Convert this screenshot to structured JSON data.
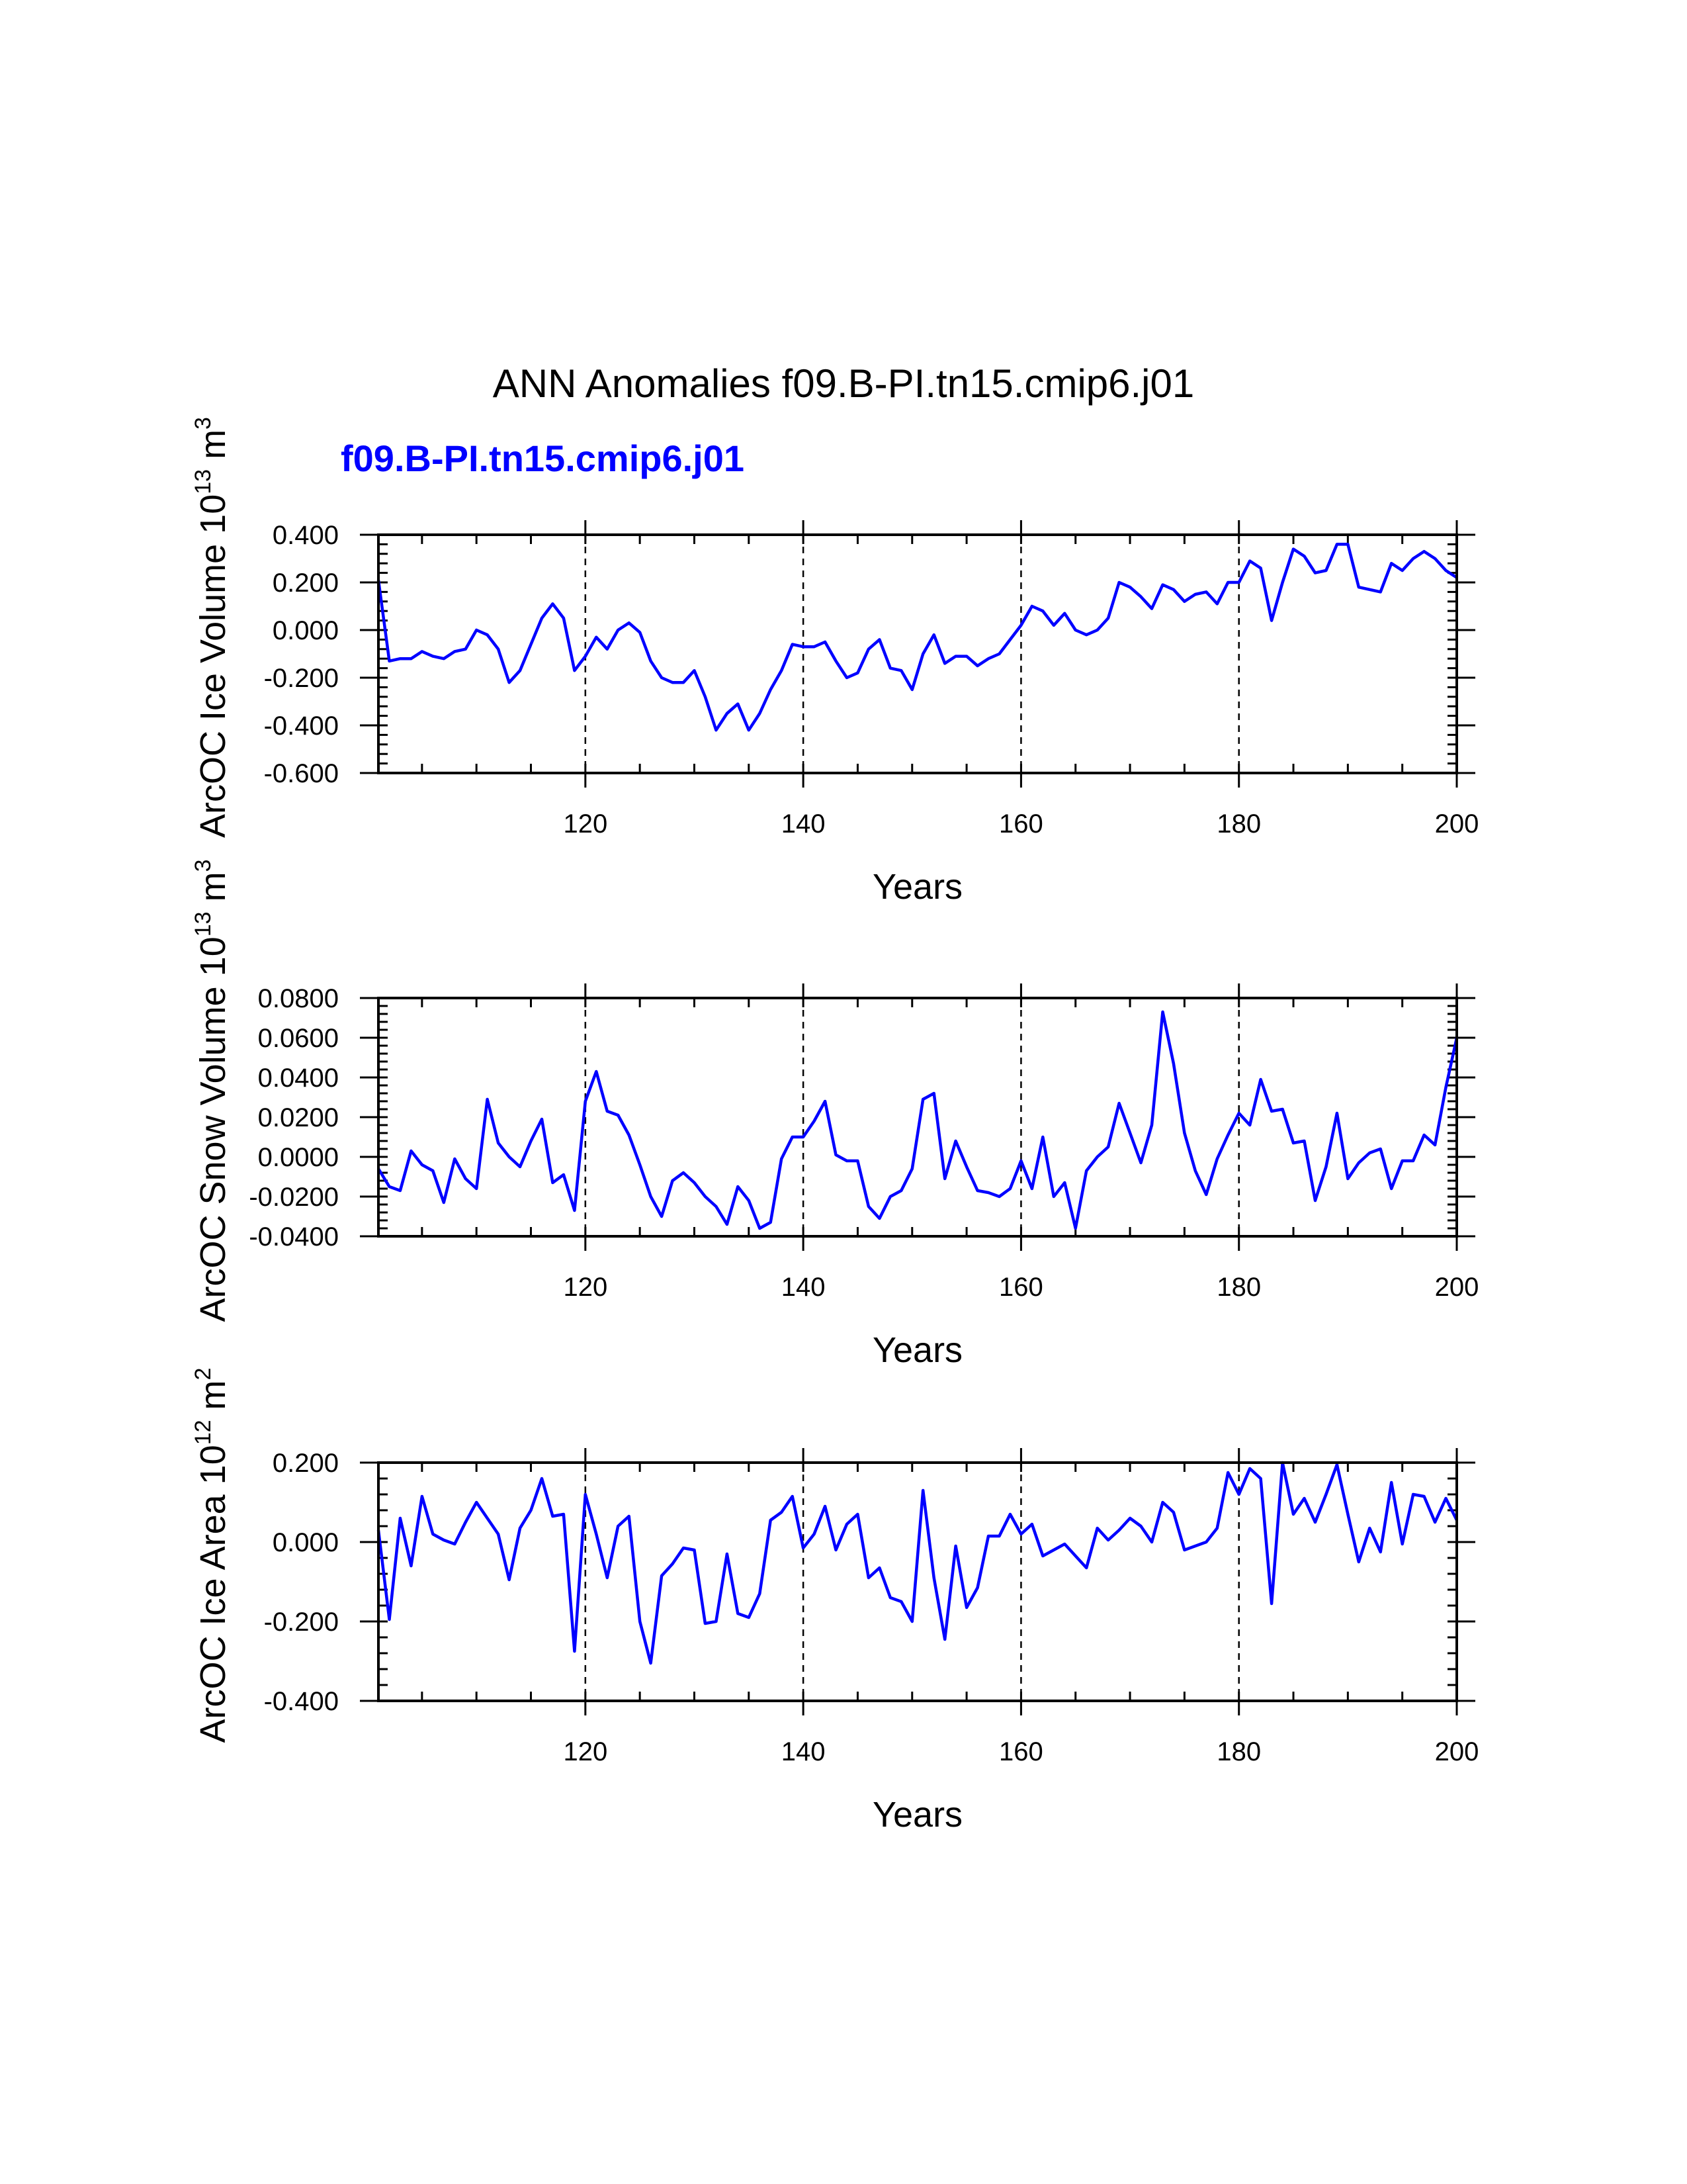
{
  "title": "ANN Anomalies f09.B-PI.tn15.cmip6.j01",
  "series_label": "f09.B-PI.tn15.cmip6.j01",
  "colors": {
    "line": "#0000ff",
    "axis": "#000000",
    "label": "#0000ff"
  },
  "chart_data": [
    {
      "type": "line",
      "title": "ArcOC Ice Volume",
      "ylabel": "ArcOC Ice Volume",
      "ylabel_unit_base": "10",
      "ylabel_unit_exp": "13",
      "ylabel_unit_m": "m",
      "ylabel_unit_mexp": "3",
      "xlabel": "Years",
      "xlim": [
        101,
        200
      ],
      "ylim": [
        -0.6,
        0.4
      ],
      "xticks": [
        120,
        140,
        160,
        180,
        200
      ],
      "xtick_labels": [
        "120",
        "140",
        "160",
        "180",
        "200"
      ],
      "yticks": [
        -0.6,
        -0.4,
        -0.2,
        0.0,
        0.2,
        0.4
      ],
      "ytick_labels": [
        "-0.600",
        "-0.400",
        "-0.200",
        "0.000",
        "0.200",
        "0.400"
      ],
      "ytick_minor_step": 0.04,
      "grid_x": [
        120,
        140,
        160,
        180
      ],
      "x_start": 101,
      "values": [
        0.21,
        -0.13,
        -0.12,
        -0.12,
        -0.09,
        -0.11,
        -0.12,
        -0.09,
        -0.08,
        0.0,
        -0.02,
        -0.08,
        -0.22,
        -0.17,
        -0.06,
        0.05,
        0.11,
        0.05,
        -0.17,
        -0.11,
        -0.03,
        -0.08,
        0.0,
        0.03,
        -0.01,
        -0.13,
        -0.2,
        -0.22,
        -0.22,
        -0.17,
        -0.28,
        -0.42,
        -0.35,
        -0.31,
        -0.42,
        -0.35,
        -0.25,
        -0.17,
        -0.06,
        -0.07,
        -0.07,
        -0.05,
        -0.13,
        -0.2,
        -0.18,
        -0.08,
        -0.04,
        -0.16,
        -0.17,
        -0.25,
        -0.1,
        -0.02,
        -0.14,
        -0.11,
        -0.11,
        -0.15,
        -0.12,
        -0.1,
        -0.04,
        0.02,
        0.1,
        0.08,
        0.02,
        0.07,
        0.0,
        -0.02,
        0.0,
        0.05,
        0.2,
        0.18,
        0.14,
        0.09,
        0.19,
        0.17,
        0.12,
        0.15,
        0.16,
        0.11,
        0.2,
        0.2,
        0.29,
        0.26,
        0.04,
        0.2,
        0.34,
        0.31,
        0.24,
        0.25,
        0.36,
        0.36,
        0.18,
        0.17,
        0.16,
        0.28,
        0.25,
        0.3,
        0.33,
        0.3,
        0.25,
        0.22
      ]
    },
    {
      "type": "line",
      "title": "ArcOC Snow Volume",
      "ylabel": "ArcOC Snow Volume",
      "ylabel_unit_base": "10",
      "ylabel_unit_exp": "13",
      "ylabel_unit_m": "m",
      "ylabel_unit_mexp": "3",
      "xlabel": "Years",
      "xlim": [
        101,
        200
      ],
      "ylim": [
        -0.04,
        0.08
      ],
      "xticks": [
        120,
        140,
        160,
        180,
        200
      ],
      "xtick_labels": [
        "120",
        "140",
        "160",
        "180",
        "200"
      ],
      "yticks": [
        -0.04,
        -0.02,
        0.0,
        0.02,
        0.04,
        0.06,
        0.08
      ],
      "ytick_labels": [
        "-0.0400",
        "-0.0200",
        "0.0000",
        "0.0200",
        "0.0400",
        "0.0600",
        "0.0800"
      ],
      "ytick_minor_step": 0.004,
      "grid_x": [
        120,
        140,
        160,
        180
      ],
      "x_start": 101,
      "values": [
        -0.006,
        -0.015,
        -0.017,
        0.003,
        -0.004,
        -0.007,
        -0.023,
        -0.001,
        -0.011,
        -0.016,
        0.029,
        0.007,
        0.0,
        -0.005,
        0.008,
        0.019,
        -0.013,
        -0.009,
        -0.027,
        0.028,
        0.043,
        0.023,
        0.021,
        0.011,
        -0.004,
        -0.02,
        -0.03,
        -0.012,
        -0.008,
        -0.013,
        -0.02,
        -0.025,
        -0.034,
        -0.015,
        -0.022,
        -0.036,
        -0.033,
        -0.001,
        0.01,
        0.01,
        0.018,
        0.028,
        0.001,
        -0.002,
        -0.002,
        -0.025,
        -0.031,
        -0.02,
        -0.017,
        -0.006,
        0.029,
        0.032,
        -0.011,
        0.008,
        -0.005,
        -0.017,
        -0.018,
        -0.02,
        -0.016,
        -0.002,
        -0.016,
        0.01,
        -0.02,
        -0.013,
        -0.036,
        -0.007,
        0.0,
        0.005,
        0.027,
        0.012,
        -0.003,
        0.016,
        0.073,
        0.047,
        0.012,
        -0.007,
        -0.019,
        -0.001,
        0.011,
        0.022,
        0.016,
        0.039,
        0.023,
        0.024,
        0.007,
        0.008,
        -0.022,
        -0.005,
        0.022,
        -0.011,
        -0.003,
        0.002,
        0.004,
        -0.016,
        -0.002,
        -0.002,
        0.011,
        0.006,
        0.035,
        0.06
      ]
    },
    {
      "type": "line",
      "title": "ArcOC Ice Area",
      "ylabel": "ArcOC Ice Area",
      "ylabel_unit_base": "10",
      "ylabel_unit_exp": "12",
      "ylabel_unit_m": "m",
      "ylabel_unit_mexp": "2",
      "xlabel": "Years",
      "xlim": [
        101,
        200
      ],
      "ylim": [
        -0.4,
        0.2
      ],
      "xticks": [
        120,
        140,
        160,
        180,
        200
      ],
      "xtick_labels": [
        "120",
        "140",
        "160",
        "180",
        "200"
      ],
      "yticks": [
        -0.4,
        -0.2,
        0.0,
        0.2
      ],
      "ytick_labels": [
        "-0.400",
        "-0.200",
        "0.000",
        "0.200"
      ],
      "ytick_minor_step": 0.04,
      "grid_x": [
        120,
        140,
        160,
        180
      ],
      "x_start": 101,
      "values": [
        0.03,
        -0.195,
        0.06,
        -0.06,
        0.115,
        0.02,
        0.005,
        -0.005,
        0.05,
        0.1,
        0.06,
        0.02,
        -0.095,
        0.035,
        0.08,
        0.16,
        0.065,
        0.07,
        -0.275,
        0.12,
        0.02,
        -0.09,
        0.04,
        0.065,
        -0.2,
        -0.305,
        -0.085,
        -0.055,
        -0.015,
        -0.02,
        -0.205,
        -0.2,
        -0.03,
        -0.18,
        -0.19,
        -0.13,
        0.055,
        0.075,
        0.115,
        -0.015,
        0.02,
        0.09,
        -0.02,
        0.045,
        0.07,
        -0.09,
        -0.065,
        -0.14,
        -0.15,
        -0.2,
        0.13,
        -0.09,
        -0.245,
        -0.01,
        -0.165,
        -0.115,
        0.015,
        0.015,
        0.07,
        0.02,
        0.045,
        -0.035,
        -0.02,
        -0.005,
        -0.035,
        -0.065,
        0.035,
        0.005,
        0.03,
        0.06,
        0.04,
        0.0,
        0.1,
        0.075,
        -0.02,
        -0.01,
        0.0,
        0.035,
        0.175,
        0.12,
        0.185,
        0.16,
        -0.155,
        0.2,
        0.07,
        0.11,
        0.05,
        0.12,
        0.195,
        0.07,
        -0.05,
        0.035,
        -0.025,
        0.15,
        -0.005,
        0.12,
        0.115,
        0.05,
        0.11,
        0.055
      ]
    }
  ]
}
